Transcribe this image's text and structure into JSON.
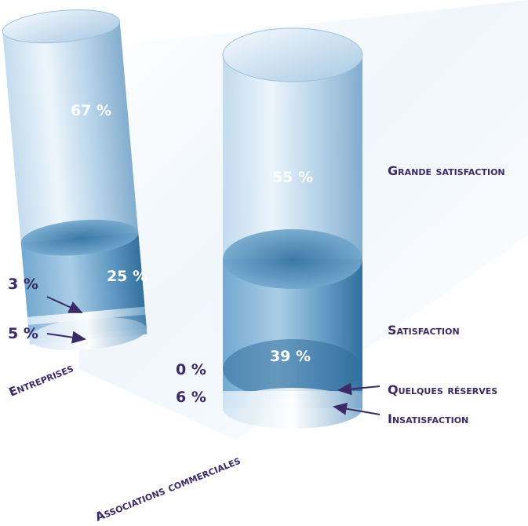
{
  "chart_data": {
    "type": "bar",
    "style": "3d-stacked-cylinders",
    "categories": [
      "Entreprises",
      "Associations commerciales"
    ],
    "series": [
      {
        "name": "Grande satisfaction",
        "values": [
          67,
          55
        ]
      },
      {
        "name": "Satisfaction",
        "values": [
          25,
          39
        ]
      },
      {
        "name": "Quelques réserves",
        "values": [
          3,
          0
        ]
      },
      {
        "name": "Insatisfaction",
        "values": [
          5,
          6
        ]
      }
    ],
    "value_labels": [
      [
        "67 %",
        "25 %",
        "3 %",
        "5 %"
      ],
      [
        "55 %",
        "39 %",
        "0 %",
        "6 %"
      ]
    ],
    "legend_placement": "right",
    "grid": false,
    "colors": {
      "text": "#3b2a66",
      "cylinder_light": "#cfe3f3",
      "cylinder_mid": "#8bb8d9",
      "cylinder_dark": "#3f7ea9",
      "value_text": "#ffffff"
    }
  }
}
